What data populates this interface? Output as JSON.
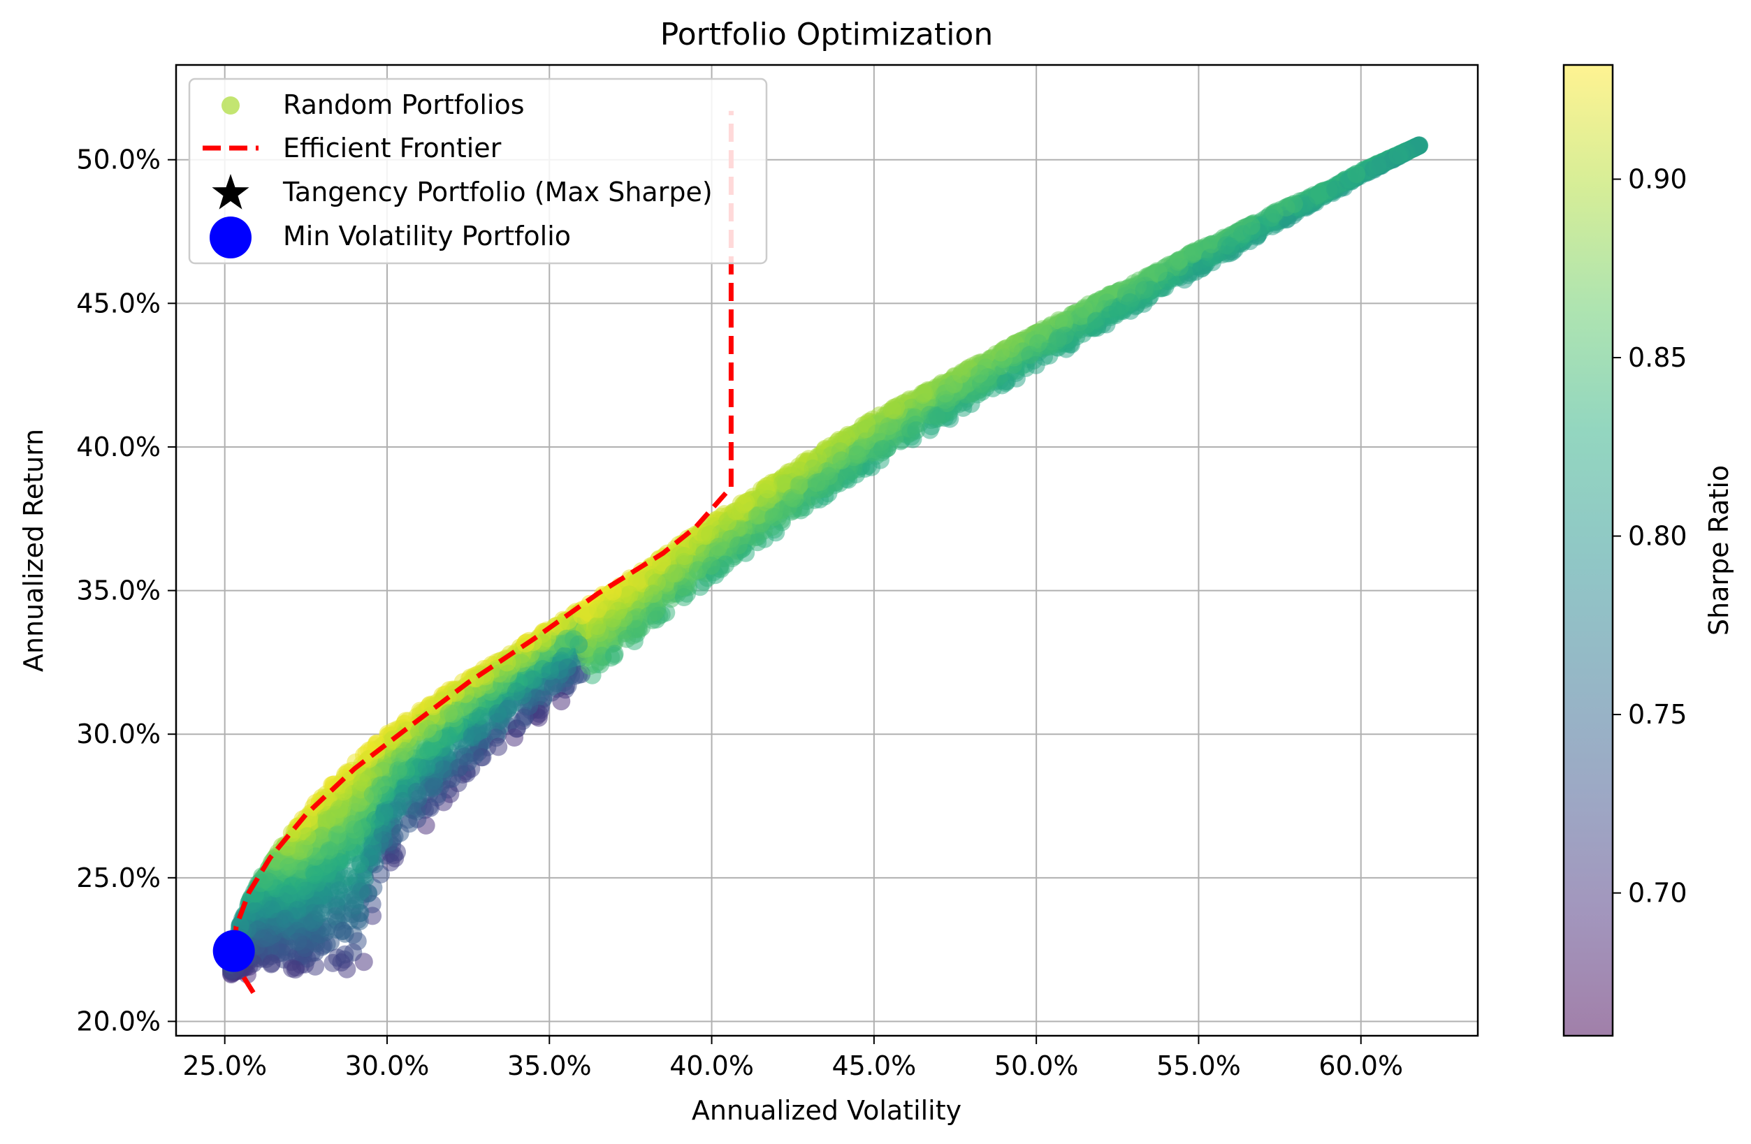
{
  "chart_data": {
    "type": "scatter",
    "title": "Portfolio Optimization",
    "xlabel": "Annualized Volatility",
    "ylabel": "Annualized Return",
    "xlim": [
      0.235,
      0.636
    ],
    "ylim": [
      0.195,
      0.533
    ],
    "xticks": [
      0.25,
      0.3,
      0.35,
      0.4,
      0.45,
      0.5,
      0.55,
      0.6
    ],
    "xtick_labels": [
      "25.0%",
      "30.0%",
      "35.0%",
      "40.0%",
      "45.0%",
      "50.0%",
      "55.0%",
      "60.0%"
    ],
    "yticks": [
      0.2,
      0.25,
      0.3,
      0.35,
      0.4,
      0.45,
      0.5
    ],
    "ytick_labels": [
      "20.0%",
      "25.0%",
      "30.0%",
      "35.0%",
      "40.0%",
      "45.0%",
      "50.0%"
    ],
    "grid": true,
    "legend_position": "top-left",
    "legend": [
      {
        "label": "Random Portfolios",
        "marker": "circle",
        "color": "#bde262"
      },
      {
        "label": "Efficient Frontier",
        "marker": "dashed-line",
        "color": "#ff0000"
      },
      {
        "label": "Tangency Portfolio (Max Sharpe)",
        "marker": "star",
        "color": "#000000"
      },
      {
        "label": "Min Volatility Portfolio",
        "marker": "circle",
        "color": "#0000ff"
      }
    ],
    "colorbar": {
      "label": "Sharpe Ratio",
      "min": 0.66,
      "max": 0.932,
      "ticks": [
        0.7,
        0.75,
        0.8,
        0.85,
        0.9
      ],
      "tick_labels": [
        "0.70",
        "0.75",
        "0.80",
        "0.85",
        "0.90"
      ],
      "colormap": "viridis",
      "alpha": 0.5
    },
    "random_portfolios": {
      "count": 5000,
      "upper_envelope": [
        [
          0.252,
          0.222
        ],
        [
          0.255,
          0.235
        ],
        [
          0.26,
          0.248
        ],
        [
          0.27,
          0.265
        ],
        [
          0.28,
          0.279
        ],
        [
          0.29,
          0.29
        ],
        [
          0.3,
          0.3
        ],
        [
          0.31,
          0.308
        ],
        [
          0.32,
          0.316
        ],
        [
          0.33,
          0.323
        ],
        [
          0.34,
          0.33
        ],
        [
          0.35,
          0.337
        ],
        [
          0.36,
          0.344
        ],
        [
          0.37,
          0.351
        ],
        [
          0.38,
          0.358
        ],
        [
          0.39,
          0.366
        ],
        [
          0.4,
          0.374
        ],
        [
          0.41,
          0.381
        ],
        [
          0.42,
          0.389
        ],
        [
          0.43,
          0.396
        ],
        [
          0.44,
          0.403
        ],
        [
          0.45,
          0.41
        ],
        [
          0.46,
          0.416
        ],
        [
          0.47,
          0.422
        ],
        [
          0.48,
          0.428
        ],
        [
          0.49,
          0.434
        ],
        [
          0.5,
          0.44
        ],
        [
          0.51,
          0.446
        ],
        [
          0.52,
          0.452
        ],
        [
          0.53,
          0.457
        ],
        [
          0.54,
          0.463
        ],
        [
          0.55,
          0.469
        ],
        [
          0.56,
          0.474
        ],
        [
          0.57,
          0.48
        ],
        [
          0.58,
          0.485
        ],
        [
          0.59,
          0.49
        ],
        [
          0.6,
          0.496
        ],
        [
          0.61,
          0.501
        ],
        [
          0.618,
          0.505
        ]
      ],
      "lower_envelope": [
        [
          0.252,
          0.216
        ],
        [
          0.26,
          0.216
        ],
        [
          0.27,
          0.215
        ],
        [
          0.28,
          0.214
        ],
        [
          0.29,
          0.214
        ],
        [
          0.293,
          0.219
        ],
        [
          0.296,
          0.235
        ],
        [
          0.3,
          0.25
        ],
        [
          0.31,
          0.265
        ],
        [
          0.32,
          0.278
        ],
        [
          0.33,
          0.289
        ],
        [
          0.34,
          0.299
        ],
        [
          0.35,
          0.308
        ],
        [
          0.36,
          0.317
        ],
        [
          0.37,
          0.326
        ],
        [
          0.38,
          0.335
        ],
        [
          0.39,
          0.345
        ],
        [
          0.4,
          0.354
        ],
        [
          0.41,
          0.362
        ],
        [
          0.42,
          0.37
        ],
        [
          0.43,
          0.378
        ],
        [
          0.44,
          0.386
        ],
        [
          0.45,
          0.393
        ],
        [
          0.46,
          0.4
        ],
        [
          0.47,
          0.407
        ],
        [
          0.48,
          0.414
        ],
        [
          0.49,
          0.421
        ],
        [
          0.5,
          0.428
        ],
        [
          0.51,
          0.434
        ],
        [
          0.52,
          0.441
        ],
        [
          0.53,
          0.447
        ],
        [
          0.54,
          0.454
        ],
        [
          0.55,
          0.461
        ],
        [
          0.56,
          0.467
        ],
        [
          0.57,
          0.474
        ],
        [
          0.58,
          0.481
        ],
        [
          0.59,
          0.487
        ],
        [
          0.6,
          0.494
        ],
        [
          0.61,
          0.5
        ],
        [
          0.618,
          0.505
        ]
      ]
    },
    "efficient_frontier": {
      "x": [
        0.2588,
        0.2555,
        0.2528,
        0.2535,
        0.2575,
        0.264,
        0.275,
        0.29,
        0.305,
        0.325,
        0.345,
        0.365,
        0.385,
        0.395,
        0.406,
        0.406,
        0.406
      ],
      "y": [
        0.21,
        0.216,
        0.223,
        0.233,
        0.245,
        0.257,
        0.272,
        0.288,
        0.301,
        0.318,
        0.333,
        0.349,
        0.363,
        0.372,
        0.386,
        0.45,
        0.517
      ]
    },
    "tangency_portfolio": {
      "x": 0.2528,
      "y": 0.2245
    },
    "min_volatility_portfolio": {
      "x": 0.2528,
      "y": 0.2245
    }
  }
}
